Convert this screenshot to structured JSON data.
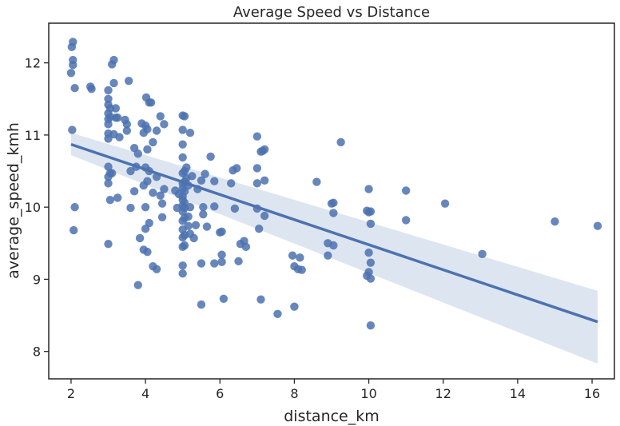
{
  "chart_data": {
    "type": "scatter",
    "title": "Average Speed vs Distance",
    "xlabel": "distance_km",
    "ylabel": "average_speed_kmh",
    "xlim": [
      1.4,
      16.6
    ],
    "ylim": [
      7.62,
      12.55
    ],
    "xticks": [
      2,
      4,
      6,
      8,
      10,
      12,
      14,
      16
    ],
    "yticks": [
      8,
      9,
      10,
      11,
      12
    ],
    "grid": false,
    "legend": "none",
    "colors": {
      "points": "#4c72b0",
      "line": "#4c72b0",
      "band": "#dde5f1",
      "axes": "#262626"
    },
    "regression": {
      "x": [
        2.0,
        16.15
      ],
      "y": [
        10.87,
        8.41
      ],
      "ci_upper": [
        11.03,
        8.84
      ],
      "ci_lower": [
        10.72,
        7.83
      ]
    },
    "points": [
      [
        2.05,
        12.29
      ],
      [
        2.02,
        12.22
      ],
      [
        2.05,
        12.04
      ],
      [
        2.05,
        11.97
      ],
      [
        2.0,
        11.86
      ],
      [
        2.1,
        11.65
      ],
      [
        2.03,
        11.07
      ],
      [
        2.1,
        10.0
      ],
      [
        2.07,
        9.68
      ],
      [
        2.52,
        11.67
      ],
      [
        2.55,
        11.64
      ],
      [
        3.0,
        11.62
      ],
      [
        3.0,
        11.5
      ],
      [
        3.0,
        11.42
      ],
      [
        3.05,
        11.37
      ],
      [
        3.0,
        11.3
      ],
      [
        3.05,
        11.25
      ],
      [
        3.0,
        11.22
      ],
      [
        3.0,
        11.15
      ],
      [
        3.0,
        11.02
      ],
      [
        3.0,
        10.95
      ],
      [
        3.0,
        10.56
      ],
      [
        3.05,
        10.47
      ],
      [
        3.0,
        10.42
      ],
      [
        3.0,
        10.33
      ],
      [
        3.05,
        10.1
      ],
      [
        3.0,
        9.49
      ],
      [
        3.1,
        11.98
      ],
      [
        3.15,
        12.04
      ],
      [
        3.15,
        11.72
      ],
      [
        3.2,
        11.37
      ],
      [
        3.2,
        11.24
      ],
      [
        3.25,
        11.24
      ],
      [
        3.15,
        11.01
      ],
      [
        3.3,
        10.97
      ],
      [
        3.1,
        10.47
      ],
      [
        3.25,
        10.13
      ],
      [
        3.45,
        11.21
      ],
      [
        3.5,
        11.15
      ],
      [
        3.5,
        11.06
      ],
      [
        3.55,
        11.75
      ],
      [
        3.6,
        10.5
      ],
      [
        3.6,
        9.99
      ],
      [
        3.7,
        10.82
      ],
      [
        3.75,
        10.56
      ],
      [
        3.7,
        10.22
      ],
      [
        3.8,
        10.74
      ],
      [
        3.85,
        9.57
      ],
      [
        3.8,
        8.92
      ],
      [
        3.9,
        11.16
      ],
      [
        3.95,
        11.03
      ],
      [
        4.0,
        11.13
      ],
      [
        4.02,
        11.52
      ],
      [
        4.05,
        11.08
      ],
      [
        4.1,
        11.45
      ],
      [
        4.05,
        10.8
      ],
      [
        4.0,
        10.55
      ],
      [
        4.1,
        10.5
      ],
      [
        3.95,
        10.3
      ],
      [
        4.05,
        10.36
      ],
      [
        4.0,
        10.0
      ],
      [
        4.1,
        9.78
      ],
      [
        4.0,
        9.7
      ],
      [
        4.05,
        9.38
      ],
      [
        3.95,
        9.41
      ],
      [
        4.15,
        11.45
      ],
      [
        4.2,
        10.9
      ],
      [
        4.2,
        10.2
      ],
      [
        4.2,
        9.18
      ],
      [
        4.3,
        11.06
      ],
      [
        4.3,
        10.42
      ],
      [
        4.3,
        9.14
      ],
      [
        4.4,
        11.26
      ],
      [
        4.4,
        10.16
      ],
      [
        4.45,
        10.05
      ],
      [
        4.45,
        9.86
      ],
      [
        4.5,
        11.15
      ],
      [
        4.5,
        10.25
      ],
      [
        4.8,
        10.23
      ],
      [
        4.85,
        9.99
      ],
      [
        4.9,
        10.18
      ],
      [
        5.0,
        11.27
      ],
      [
        5.05,
        11.26
      ],
      [
        5.0,
        11.07
      ],
      [
        5.0,
        10.87
      ],
      [
        5.0,
        10.69
      ],
      [
        5.05,
        10.5
      ],
      [
        5.0,
        10.47
      ],
      [
        5.1,
        10.4
      ],
      [
        5.05,
        10.35
      ],
      [
        5.0,
        10.33
      ],
      [
        5.0,
        10.26
      ],
      [
        5.05,
        10.22
      ],
      [
        5.0,
        10.15
      ],
      [
        5.0,
        10.1
      ],
      [
        5.05,
        10.06
      ],
      [
        5.0,
        10.02
      ],
      [
        5.05,
        9.99
      ],
      [
        5.0,
        9.94
      ],
      [
        5.05,
        9.85
      ],
      [
        5.0,
        9.81
      ],
      [
        5.0,
        9.69
      ],
      [
        5.05,
        9.61
      ],
      [
        5.0,
        9.58
      ],
      [
        5.05,
        9.47
      ],
      [
        5.0,
        9.45
      ],
      [
        5.0,
        9.19
      ],
      [
        5.0,
        9.08
      ],
      [
        5.1,
        10.55
      ],
      [
        5.15,
        10.3
      ],
      [
        5.2,
        11.03
      ],
      [
        5.2,
        10.0
      ],
      [
        5.15,
        9.87
      ],
      [
        5.15,
        9.74
      ],
      [
        5.2,
        9.63
      ],
      [
        5.25,
        10.43
      ],
      [
        5.3,
        9.57
      ],
      [
        5.35,
        9.75
      ],
      [
        5.4,
        10.25
      ],
      [
        5.5,
        10.37
      ],
      [
        5.55,
        10.0
      ],
      [
        5.55,
        9.9
      ],
      [
        5.5,
        9.22
      ],
      [
        5.5,
        8.65
      ],
      [
        5.6,
        10.46
      ],
      [
        5.65,
        9.73
      ],
      [
        5.75,
        10.7
      ],
      [
        5.85,
        10.36
      ],
      [
        5.85,
        10.01
      ],
      [
        5.85,
        9.22
      ],
      [
        6.0,
        9.65
      ],
      [
        6.05,
        9.66
      ],
      [
        6.05,
        9.34
      ],
      [
        6.05,
        9.24
      ],
      [
        6.1,
        8.73
      ],
      [
        6.3,
        10.33
      ],
      [
        6.35,
        10.51
      ],
      [
        6.45,
        10.54
      ],
      [
        6.4,
        9.98
      ],
      [
        6.5,
        9.25
      ],
      [
        6.55,
        9.49
      ],
      [
        6.65,
        9.53
      ],
      [
        6.7,
        9.45
      ],
      [
        7.0,
        10.98
      ],
      [
        7.0,
        10.54
      ],
      [
        7.0,
        10.33
      ],
      [
        7.0,
        9.98
      ],
      [
        7.05,
        9.7
      ],
      [
        7.1,
        10.77
      ],
      [
        7.15,
        10.78
      ],
      [
        7.2,
        10.8
      ],
      [
        7.2,
        10.37
      ],
      [
        7.2,
        9.88
      ],
      [
        7.1,
        8.72
      ],
      [
        7.55,
        8.52
      ],
      [
        7.95,
        9.33
      ],
      [
        8.0,
        9.18
      ],
      [
        8.0,
        8.62
      ],
      [
        8.1,
        9.14
      ],
      [
        8.15,
        9.3
      ],
      [
        8.2,
        9.13
      ],
      [
        8.6,
        10.35
      ],
      [
        8.9,
        9.33
      ],
      [
        8.9,
        9.5
      ],
      [
        9.0,
        10.05
      ],
      [
        9.05,
        10.06
      ],
      [
        9.05,
        9.47
      ],
      [
        9.05,
        9.92
      ],
      [
        9.25,
        10.9
      ],
      [
        10.0,
        10.25
      ],
      [
        9.95,
        9.95
      ],
      [
        10.0,
        9.93
      ],
      [
        10.05,
        9.94
      ],
      [
        10.05,
        9.77
      ],
      [
        10.0,
        9.37
      ],
      [
        10.05,
        9.23
      ],
      [
        9.95,
        9.05
      ],
      [
        10.0,
        9.1
      ],
      [
        10.05,
        9.01
      ],
      [
        10.05,
        8.36
      ],
      [
        11.0,
        10.23
      ],
      [
        11.0,
        9.82
      ],
      [
        12.05,
        10.05
      ],
      [
        13.05,
        9.35
      ],
      [
        15.0,
        9.8
      ],
      [
        16.15,
        9.74
      ]
    ]
  }
}
